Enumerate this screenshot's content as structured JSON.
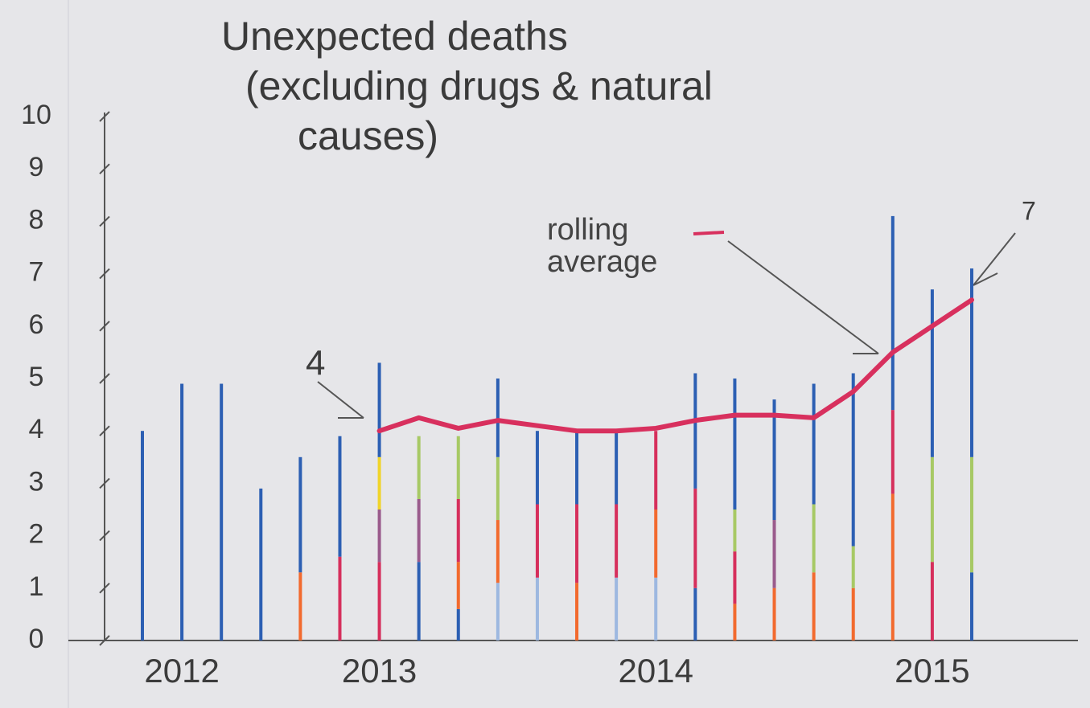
{
  "chart_data": {
    "type": "bar",
    "stacked": true,
    "title": [
      "Unexpected deaths",
      "(excluding drugs & natural",
      "causes)"
    ],
    "categories": [
      null,
      "2012",
      null,
      null,
      null,
      null,
      "2013",
      null,
      null,
      null,
      null,
      null,
      null,
      "2014",
      null,
      null,
      null,
      null,
      null,
      null,
      "2015",
      null
    ],
    "series": [
      {
        "color": "#2c5fb3",
        "values": [
          0,
          0,
          0,
          0,
          0,
          0,
          0,
          1.5,
          0.6,
          0,
          0,
          0,
          0,
          0,
          1.0,
          0,
          0,
          0,
          0,
          0,
          0,
          1.3
        ]
      },
      {
        "color": "#9db8e0",
        "values": [
          0,
          0,
          0,
          0,
          0,
          0,
          0,
          0,
          0,
          1.1,
          1.2,
          0,
          1.2,
          1.2,
          0,
          0,
          0,
          0,
          0,
          0,
          0,
          0
        ]
      },
      {
        "color": "#f26a2e",
        "values": [
          0,
          0,
          0,
          0,
          1.3,
          0,
          0,
          0,
          0.9,
          1.2,
          0,
          1.1,
          0,
          1.3,
          0,
          0.7,
          1.0,
          1.3,
          1.0,
          2.8,
          0,
          0
        ]
      },
      {
        "color": "#d62f5c",
        "values": [
          0,
          0,
          0,
          0,
          0,
          1.6,
          1.5,
          0,
          1.2,
          0,
          1.4,
          1.5,
          1.4,
          1.5,
          1.9,
          1.0,
          0,
          0,
          0,
          1.6,
          1.5,
          0
        ]
      },
      {
        "color": "#9a5b8c",
        "values": [
          0,
          0,
          0,
          0,
          0,
          0,
          1.0,
          1.2,
          0,
          0,
          0,
          0,
          0,
          0,
          0,
          0,
          1.3,
          0,
          0,
          0,
          0,
          0
        ]
      },
      {
        "color": "#a7c965",
        "values": [
          0,
          0,
          0,
          0,
          0,
          0,
          0,
          1.2,
          1.2,
          1.2,
          0,
          0,
          0,
          0,
          0,
          0.8,
          0,
          1.3,
          0.8,
          0,
          2.0,
          2.2
        ]
      },
      {
        "color": "#f0d42a",
        "values": [
          0,
          0,
          0,
          0,
          0,
          0,
          1.0,
          0,
          0,
          0,
          0,
          0,
          0,
          0,
          0,
          0,
          0,
          0,
          0,
          0,
          0,
          0
        ]
      },
      {
        "color": "#2c5fb3",
        "values": [
          4.0,
          4.9,
          4.9,
          2.9,
          2.2,
          2.3,
          1.8,
          0,
          0,
          1.5,
          1.4,
          1.4,
          1.4,
          0,
          2.2,
          2.5,
          2.3,
          2.3,
          3.3,
          3.7,
          3.2,
          3.6
        ]
      },
      {
        "name": "rolling average",
        "type": "line",
        "color": "#d8305e",
        "values": [
          null,
          null,
          null,
          null,
          null,
          null,
          4.0,
          4.25,
          4.05,
          4.2,
          4.1,
          4.0,
          4.0,
          4.05,
          4.2,
          4.3,
          4.3,
          4.25,
          4.75,
          5.5,
          6.0,
          6.5
        ]
      }
    ],
    "ylim": [
      0,
      10
    ],
    "yticks": [
      0,
      1,
      2,
      3,
      4,
      5,
      6,
      7,
      8,
      9,
      10
    ],
    "annotations": [
      "4",
      "7"
    ]
  }
}
